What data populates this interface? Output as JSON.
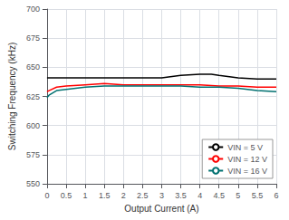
{
  "chart_data": {
    "type": "line",
    "title": "",
    "xlabel": "Output Current (A)",
    "ylabel": "Switching Frequency (kHz)",
    "xlim": [
      0,
      6
    ],
    "ylim": [
      550,
      700
    ],
    "xticks": [
      0,
      0.5,
      1,
      1.5,
      2,
      2.5,
      3,
      3.5,
      4,
      4.5,
      5,
      5.5,
      6
    ],
    "yticks": [
      550,
      575,
      600,
      625,
      650,
      675,
      700
    ],
    "grid": true,
    "legend": "lower right",
    "series": [
      {
        "name": "VIN = 5 V",
        "color": "#000000",
        "x": [
          0.0,
          0.05,
          0.25,
          0.5,
          1.0,
          1.5,
          2.0,
          2.5,
          3.0,
          3.5,
          4.0,
          4.3,
          4.5,
          5.0,
          5.5,
          6.0
        ],
        "values": [
          641,
          641,
          641,
          641,
          641,
          641,
          641,
          641,
          641,
          643,
          644,
          644,
          643,
          641,
          640,
          640
        ]
      },
      {
        "name": "VIN = 12 V",
        "color": "#ff0000",
        "x": [
          0.0,
          0.05,
          0.25,
          0.5,
          1.0,
          1.5,
          2.0,
          2.5,
          3.0,
          3.5,
          4.0,
          4.5,
          5.0,
          5.5,
          6.0
        ],
        "values": [
          629,
          630,
          633,
          634,
          635,
          636,
          635,
          635,
          635,
          635,
          635,
          634,
          634,
          633,
          633
        ]
      },
      {
        "name": "VIN = 16 V",
        "color": "#007070",
        "x": [
          0.0,
          0.05,
          0.25,
          0.5,
          1.0,
          1.5,
          2.0,
          2.5,
          3.0,
          3.5,
          4.0,
          4.5,
          5.0,
          5.5,
          6.0
        ],
        "values": [
          624,
          626,
          630,
          631,
          633,
          634,
          634,
          634,
          634,
          634,
          633,
          633,
          632,
          630,
          629
        ]
      }
    ]
  }
}
